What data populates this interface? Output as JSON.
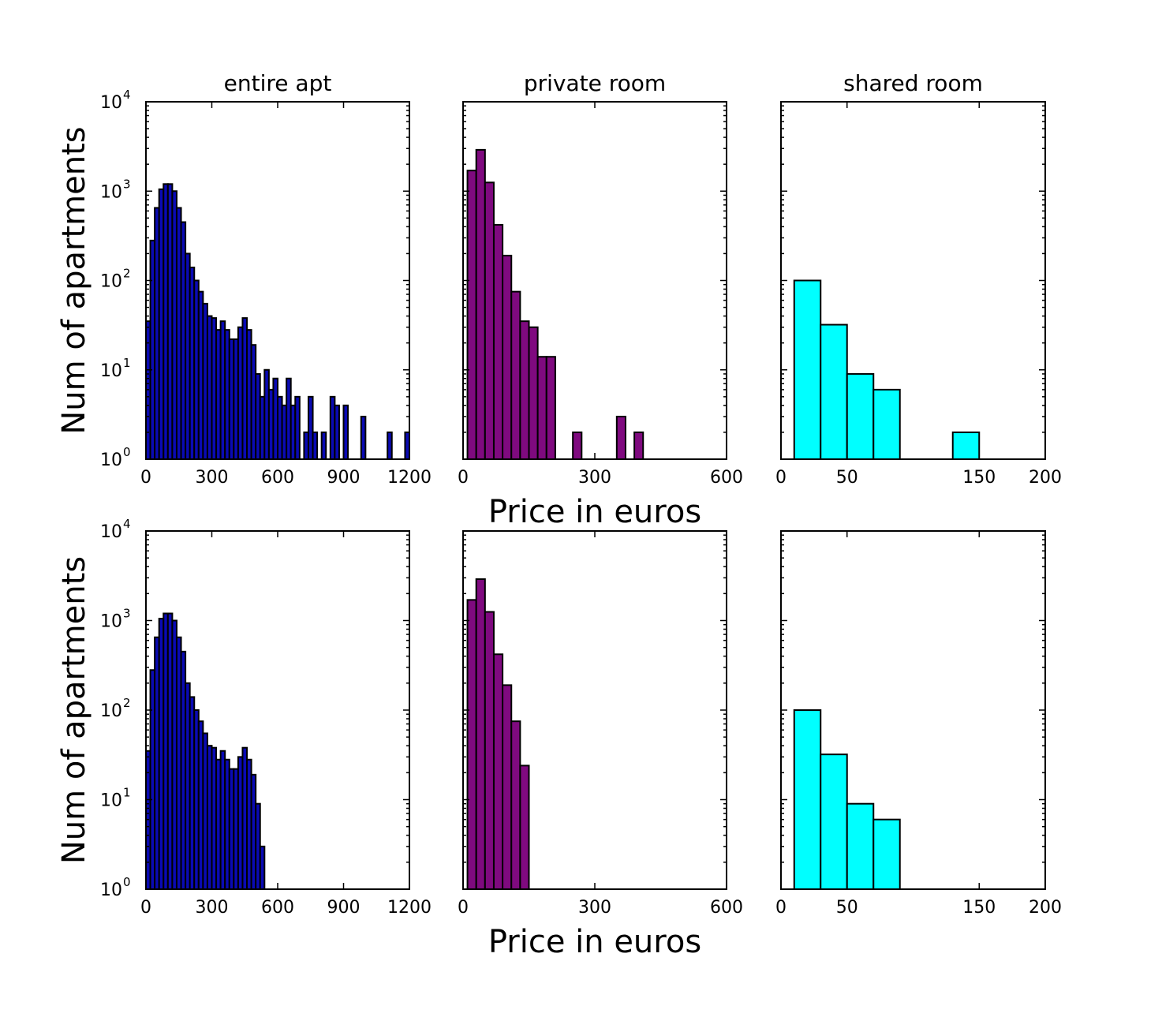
{
  "colors": {
    "entire_apt": "#0a0ab4",
    "private_room": "#7f0a7f",
    "shared_room": "#00ffff"
  },
  "chart_data": [
    {
      "id": "top-entire",
      "type": "bar",
      "title": "entire apt",
      "xlabel": "",
      "ylabel": "Num of apartments",
      "yscale": "log",
      "xlim": [
        0,
        1200
      ],
      "ylim": [
        1,
        10000
      ],
      "xticks": [
        "0",
        "300",
        "600",
        "900",
        "1200"
      ],
      "yticks": [
        "10^0",
        "10^1",
        "10^2",
        "10^3",
        "10^4"
      ],
      "bin_width": 20,
      "bins": [
        [
          10,
          35
        ],
        [
          30,
          280
        ],
        [
          50,
          650
        ],
        [
          70,
          1050
        ],
        [
          90,
          1200
        ],
        [
          110,
          1200
        ],
        [
          130,
          1000
        ],
        [
          150,
          650
        ],
        [
          170,
          450
        ],
        [
          190,
          200
        ],
        [
          210,
          140
        ],
        [
          230,
          100
        ],
        [
          250,
          75
        ],
        [
          270,
          55
        ],
        [
          290,
          40
        ],
        [
          310,
          38
        ],
        [
          330,
          28
        ],
        [
          350,
          35
        ],
        [
          370,
          28
        ],
        [
          390,
          22
        ],
        [
          410,
          22
        ],
        [
          430,
          30
        ],
        [
          450,
          38
        ],
        [
          470,
          28
        ],
        [
          490,
          19
        ],
        [
          510,
          9
        ],
        [
          530,
          5
        ],
        [
          550,
          10
        ],
        [
          570,
          6
        ],
        [
          590,
          8
        ],
        [
          610,
          5
        ],
        [
          630,
          4
        ],
        [
          650,
          8
        ],
        [
          670,
          4
        ],
        [
          690,
          5
        ],
        [
          710,
          1
        ],
        [
          730,
          2
        ],
        [
          750,
          5
        ],
        [
          770,
          2
        ],
        [
          790,
          1
        ],
        [
          810,
          2
        ],
        [
          850,
          5
        ],
        [
          870,
          4
        ],
        [
          890,
          1
        ],
        [
          910,
          4
        ],
        [
          990,
          3
        ],
        [
          1110,
          2
        ],
        [
          1190,
          2
        ]
      ],
      "series_color": "#0a0ab4"
    },
    {
      "id": "top-private",
      "type": "bar",
      "title": "private room",
      "xlabel": "",
      "ylabel": "",
      "yscale": "log",
      "xlim": [
        0,
        600
      ],
      "ylim": [
        1,
        10000
      ],
      "xticks": [
        "0",
        "300",
        "600"
      ],
      "bin_width": 20,
      "bins": [
        [
          20,
          1700
        ],
        [
          40,
          2900
        ],
        [
          60,
          1250
        ],
        [
          80,
          420
        ],
        [
          100,
          190
        ],
        [
          120,
          75
        ],
        [
          140,
          35
        ],
        [
          160,
          30
        ],
        [
          180,
          14
        ],
        [
          200,
          14
        ],
        [
          260,
          2
        ],
        [
          360,
          3
        ],
        [
          400,
          2
        ]
      ],
      "series_color": "#7f0a7f"
    },
    {
      "id": "top-shared",
      "type": "bar",
      "title": "shared room",
      "xlabel": "",
      "ylabel": "",
      "yscale": "log",
      "xlim": [
        0,
        200
      ],
      "ylim": [
        1,
        10000
      ],
      "xticks": [
        "0",
        "50",
        "150",
        "200"
      ],
      "bin_width": 20,
      "bins": [
        [
          20,
          100
        ],
        [
          40,
          32
        ],
        [
          60,
          9
        ],
        [
          80,
          6
        ],
        [
          140,
          2
        ]
      ],
      "series_color": "#00ffff"
    },
    {
      "id": "bottom-entire",
      "type": "bar",
      "title": "",
      "xlabel": "",
      "ylabel": "Num of apartments",
      "yscale": "log",
      "xlim": [
        0,
        1200
      ],
      "ylim": [
        1,
        10000
      ],
      "xticks": [
        "0",
        "300",
        "600",
        "900",
        "1200"
      ],
      "yticks": [
        "10^0",
        "10^1",
        "10^2",
        "10^3",
        "10^4"
      ],
      "bin_width": 20,
      "bins": [
        [
          10,
          35
        ],
        [
          30,
          280
        ],
        [
          50,
          650
        ],
        [
          70,
          1050
        ],
        [
          90,
          1200
        ],
        [
          110,
          1200
        ],
        [
          130,
          1000
        ],
        [
          150,
          650
        ],
        [
          170,
          450
        ],
        [
          190,
          200
        ],
        [
          210,
          140
        ],
        [
          230,
          100
        ],
        [
          250,
          75
        ],
        [
          270,
          55
        ],
        [
          290,
          40
        ],
        [
          310,
          38
        ],
        [
          330,
          28
        ],
        [
          350,
          35
        ],
        [
          370,
          28
        ],
        [
          390,
          22
        ],
        [
          410,
          22
        ],
        [
          430,
          30
        ],
        [
          450,
          38
        ],
        [
          470,
          28
        ],
        [
          490,
          19
        ],
        [
          510,
          9
        ],
        [
          530,
          3
        ]
      ],
      "series_color": "#0a0ab4"
    },
    {
      "id": "bottom-private",
      "type": "bar",
      "title": "",
      "xlabel": "",
      "ylabel": "",
      "yscale": "log",
      "xlim": [
        0,
        600
      ],
      "ylim": [
        1,
        10000
      ],
      "xticks": [
        "0",
        "300",
        "600"
      ],
      "bin_width": 20,
      "bins": [
        [
          20,
          1700
        ],
        [
          40,
          2900
        ],
        [
          60,
          1250
        ],
        [
          80,
          420
        ],
        [
          100,
          190
        ],
        [
          120,
          75
        ],
        [
          140,
          24
        ]
      ],
      "series_color": "#7f0a7f"
    },
    {
      "id": "bottom-shared",
      "type": "bar",
      "title": "",
      "xlabel": "",
      "ylabel": "",
      "yscale": "log",
      "xlim": [
        0,
        200
      ],
      "ylim": [
        1,
        10000
      ],
      "xticks": [
        "0",
        "50",
        "150",
        "200"
      ],
      "bin_width": 20,
      "bins": [
        [
          20,
          100
        ],
        [
          40,
          32
        ],
        [
          60,
          9
        ],
        [
          80,
          6
        ]
      ],
      "series_color": "#00ffff"
    }
  ],
  "shared_xlabels": [
    "Price in euros",
    "Price in euros"
  ]
}
